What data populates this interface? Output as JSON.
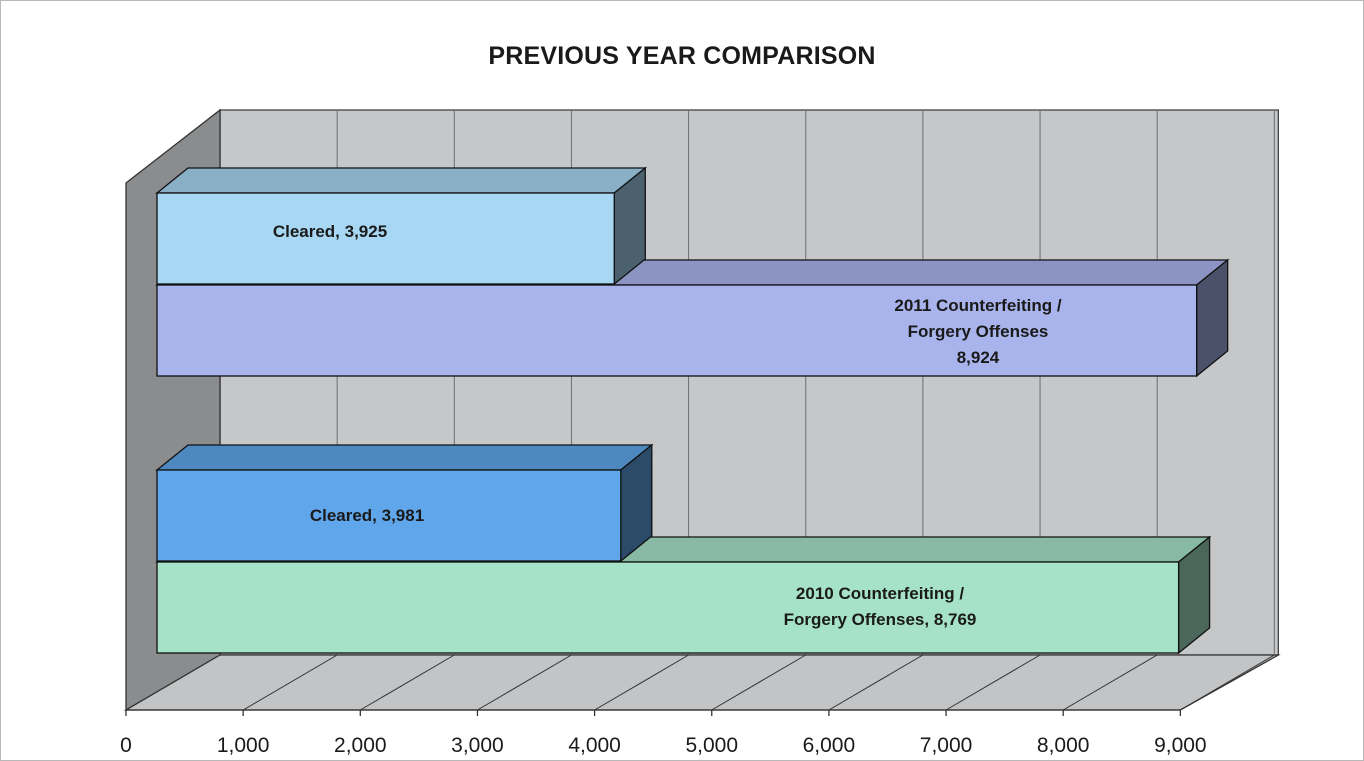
{
  "chart_data": {
    "type": "bar",
    "orientation": "horizontal",
    "style": "3d",
    "title": "PREVIOUS YEAR COMPARISON",
    "xlim": [
      0,
      9000
    ],
    "x_ticks": [
      "0",
      "1,000",
      "2,000",
      "3,000",
      "4,000",
      "5,000",
      "6,000",
      "7,000",
      "8,000",
      "9,000"
    ],
    "grid": true,
    "legend": "none",
    "groups": [
      {
        "bars": [
          {
            "value": 3925,
            "label_lines": [
              "Cleared, 3,925"
            ],
            "color": "#a7d7f3"
          },
          {
            "value": 8924,
            "label_lines": [
              "2011 Counterfeiting /",
              "Forgery Offenses",
              "8,924"
            ],
            "color": "#a9b4ec"
          }
        ]
      },
      {
        "bars": [
          {
            "value": 3981,
            "label_lines": [
              "Cleared, 3,981"
            ],
            "color": "#5fa6ea"
          },
          {
            "value": 8769,
            "label_lines": [
              "2010 Counterfeiting /",
              "Forgery Offenses, 8,769"
            ],
            "color": "#a6e2c8"
          }
        ]
      }
    ]
  }
}
